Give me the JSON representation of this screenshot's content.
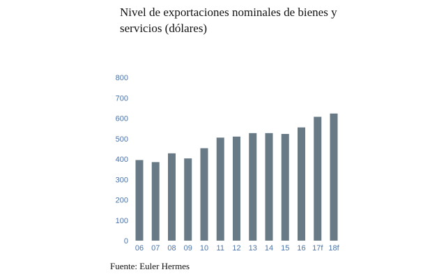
{
  "chart_data": {
    "type": "bar",
    "title": "Nivel de exportaciones nominales de bienes y servicios (dólares)",
    "source": "Fuente: Euler Hermes",
    "categories": [
      "06",
      "07",
      "08",
      "09",
      "10",
      "11",
      "12",
      "13",
      "14",
      "15",
      "16",
      "17f",
      "18f"
    ],
    "values": [
      395,
      385,
      428,
      403,
      453,
      505,
      510,
      527,
      527,
      523,
      555,
      607,
      623
    ],
    "yticks": [
      0,
      100,
      200,
      300,
      400,
      500,
      600,
      700,
      800
    ],
    "ylim": [
      0,
      800
    ],
    "xlabel": "",
    "ylabel": "",
    "bar_color": "#687a86",
    "tick_color": "#4a73a8"
  }
}
